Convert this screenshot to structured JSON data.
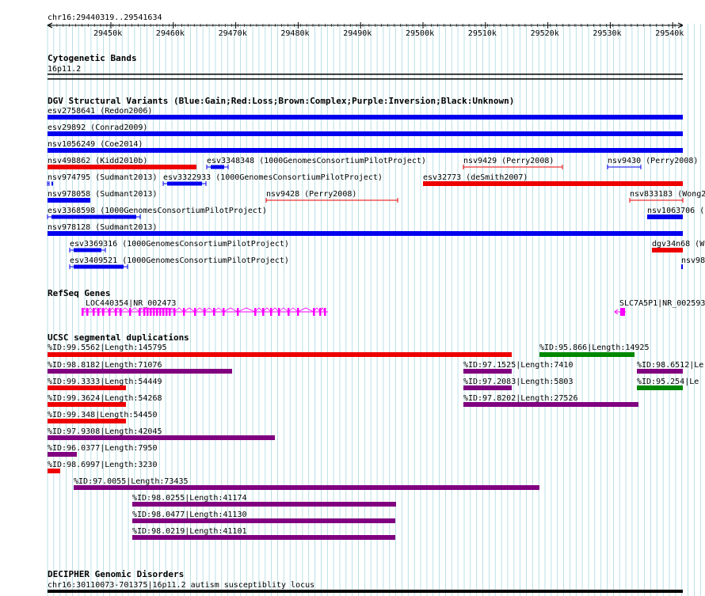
{
  "ruler": {
    "range_label": "chr16:29440319..29541634",
    "ticks": [
      "29450k",
      "29460k",
      "29470k",
      "29480k",
      "29490k",
      "29500k",
      "29510k",
      "29520k",
      "29530k",
      "29540k"
    ]
  },
  "cytoband": {
    "title": "Cytogenetic Bands",
    "band": "16p11.2"
  },
  "dgv": {
    "title": "DGV Structural Variants (Blue:Gain;Red:Loss;Brown:Complex;Purple:Inversion;Black:Unknown)",
    "features": [
      {
        "label": "esv2758641 (Redon2006)",
        "color": "#0000ee"
      },
      {
        "label": "esv29892 (Conrad2009)",
        "color": "#0000ee"
      },
      {
        "label": "nsv1056249 (Coe2014)",
        "color": "#0000ee"
      },
      {
        "label": "nsv498862 (Kidd2010b)",
        "color": "#ee0000"
      },
      {
        "label": "esv3348348 (1000GenomesConsortiumPilotProject)",
        "color": "#0000ee"
      },
      {
        "label": "nsv9429 (Perry2008)",
        "color": "#ee0000"
      },
      {
        "label": "nsv9430 (Perry2008)",
        "color": "#0000ee"
      },
      {
        "label": "nsv974795 (Sudmant2013)",
        "color": "#0000ee"
      },
      {
        "label": "esv3322933 (1000GenomesConsortiumPilotProject)",
        "color": "#0000ee"
      },
      {
        "label": "esv32773 (deSmith2007)",
        "color": "#ee0000"
      },
      {
        "label": "nsv978058 (Sudmant2013)",
        "color": "#0000ee"
      },
      {
        "label": "nsv9428 (Perry2008)",
        "color": "#ee0000"
      },
      {
        "label": "nsv833183 (Wong2",
        "color": "#ee0000"
      },
      {
        "label": "esv3368598 (1000GenomesConsortiumPilotProject)",
        "color": "#0000ee"
      },
      {
        "label": "nsv1063706 (",
        "color": "#0000ee"
      },
      {
        "label": "nsv978128 (Sudmant2013)",
        "color": "#0000ee"
      },
      {
        "label": "esv3369316 (1000GenomesConsortiumPilotProject)",
        "color": "#0000ee"
      },
      {
        "label": "dgv34n68 (W",
        "color": "#ee0000"
      },
      {
        "label": "esv3409521 (1000GenomesConsortiumPilotProject)",
        "color": "#0000ee"
      },
      {
        "label": "nsv98",
        "color": "#0000ee"
      }
    ]
  },
  "refseq": {
    "title": "RefSeq Genes",
    "genes": [
      {
        "label": "LOC440354|NR_002473",
        "color": "#ff00ff"
      },
      {
        "label": "SLC7A5P1|NR_002593",
        "color": "#ff00ff"
      }
    ]
  },
  "segdups": {
    "title": "UCSC segmental duplications",
    "features": [
      {
        "label": "%ID:99.5562|Length:145795",
        "color": "#ee0000"
      },
      {
        "label": "%ID:95.866|Length:14925",
        "color": "#008800"
      },
      {
        "label": "%ID:98.8182|Length:71076",
        "color": "#800080"
      },
      {
        "label": "%ID:97.1525|Length:7410",
        "color": "#800080"
      },
      {
        "label": "%ID:98.6512|Le",
        "color": "#800080"
      },
      {
        "label": "%ID:99.3333|Length:54449",
        "color": "#ee0000"
      },
      {
        "label": "%ID:97.2083|Length:5803",
        "color": "#800080"
      },
      {
        "label": "%ID:95.254|Le",
        "color": "#008800"
      },
      {
        "label": "%ID:99.3624|Length:54268",
        "color": "#ee0000"
      },
      {
        "label": "%ID:97.8202|Length:27526",
        "color": "#800080"
      },
      {
        "label": "%ID:99.348|Length:54450",
        "color": "#ee0000"
      },
      {
        "label": "%ID:97.9308|Length:42045",
        "color": "#800080"
      },
      {
        "label": "%ID:96.0377|Length:7950",
        "color": "#800080"
      },
      {
        "label": "%ID:98.6997|Length:3230",
        "color": "#ee0000"
      },
      {
        "label": "%ID:97.0055|Length:73435",
        "color": "#800080"
      },
      {
        "label": "%ID:98.0255|Length:41174",
        "color": "#800080"
      },
      {
        "label": "%ID:98.0477|Length:41130",
        "color": "#800080"
      },
      {
        "label": "%ID:98.0219|Length:41101",
        "color": "#800080"
      }
    ]
  },
  "decipher": {
    "title": "DECIPHER Genomic Disorders",
    "feature": "chr16:30110073-701375|16p11.2 autism susceptiblity locus"
  }
}
